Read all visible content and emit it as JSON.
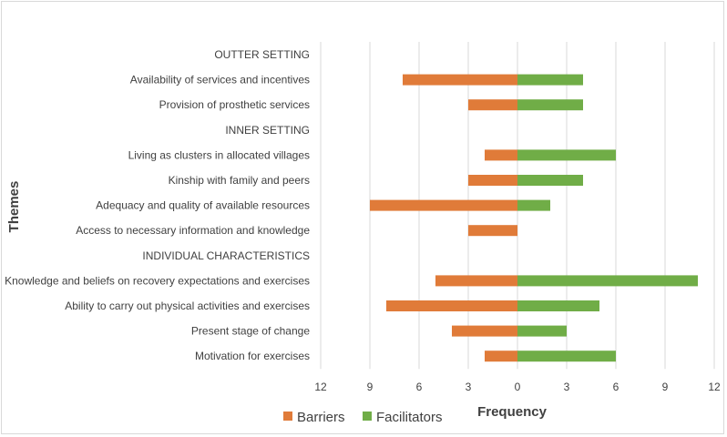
{
  "chart_data": {
    "type": "bar",
    "orientation": "horizontal",
    "layout": "diverging",
    "ylabel": "Themes",
    "xlabel": "Frequency",
    "xlim": [
      -12,
      12
    ],
    "x_ticks": [
      -12,
      -9,
      -6,
      -3,
      0,
      3,
      6,
      9,
      12
    ],
    "x_tick_labels": [
      "12",
      "9",
      "6",
      "3",
      "0",
      "3",
      "6",
      "9",
      "12"
    ],
    "grid": true,
    "legend_position": "bottom-left",
    "categories": [
      "OUTTER SETTING",
      "Availability of services and incentives",
      "Provision of prosthetic services",
      "INNER SETTING",
      "Living as clusters in allocated villages",
      "Kinship with family and peers",
      "Adequacy and quality of available resources",
      "Access to necessary information and knowledge",
      "INDIVIDUAL CHARACTERISTICS",
      "Knowledge and beliefs on recovery expectations and exercises",
      "Ability to carry out physical activities and exercises",
      "Present stage of change",
      "Motivation for exercises"
    ],
    "series": [
      {
        "name": "Barriers",
        "color": "#e07b39",
        "direction": "left",
        "values": [
          null,
          7,
          3,
          null,
          2,
          3,
          9,
          3,
          null,
          5,
          8,
          4,
          2
        ]
      },
      {
        "name": "Facilitators",
        "color": "#70ad47",
        "direction": "right",
        "values": [
          null,
          4,
          4,
          null,
          6,
          4,
          2,
          0,
          null,
          11,
          5,
          3,
          6
        ]
      }
    ]
  }
}
